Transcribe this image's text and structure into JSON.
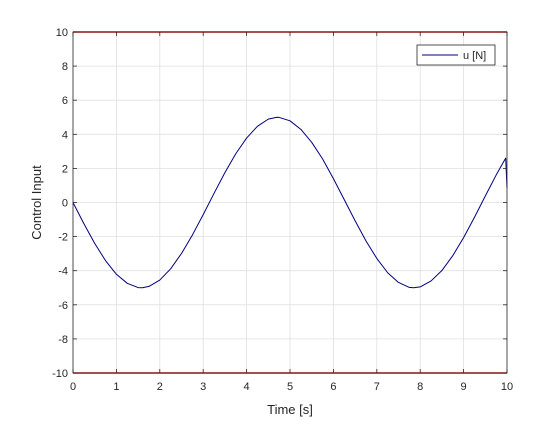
{
  "chart_data": {
    "type": "line",
    "title": "",
    "xlabel": "Time [s]",
    "ylabel": "Control Input",
    "xlim": [
      0,
      10
    ],
    "ylim": [
      -10,
      10
    ],
    "xticks": [
      0,
      1,
      2,
      3,
      4,
      5,
      6,
      7,
      8,
      9,
      10
    ],
    "yticks": [
      -10,
      -8,
      -6,
      -4,
      -2,
      0,
      2,
      4,
      6,
      8,
      10
    ],
    "grid": true,
    "legend_position": "top-right",
    "colors": {
      "series": "#00007f",
      "limits": "#ff0000",
      "grid": "#e0e0e0",
      "axes": "#262626"
    },
    "series": [
      {
        "name": "u [N]",
        "x": [
          0,
          0.25,
          0.5,
          0.75,
          1,
          1.25,
          1.5,
          1.6,
          1.75,
          2,
          2.25,
          2.5,
          2.75,
          3,
          3.25,
          3.5,
          3.75,
          4,
          4.25,
          4.5,
          4.7,
          4.75,
          5,
          5.25,
          5.5,
          5.75,
          6,
          6.25,
          6.5,
          6.75,
          7,
          7.25,
          7.5,
          7.75,
          7.85,
          8,
          8.25,
          8.5,
          8.75,
          9,
          9.25,
          9.5,
          9.75,
          9.97,
          10
        ],
        "y": [
          0,
          -1.24,
          -2.4,
          -3.41,
          -4.21,
          -4.74,
          -4.99,
          -5.0,
          -4.92,
          -4.55,
          -3.89,
          -2.99,
          -1.91,
          -0.71,
          0.54,
          1.75,
          2.86,
          3.78,
          4.47,
          4.89,
          5.0,
          4.99,
          4.79,
          4.29,
          3.53,
          2.56,
          1.4,
          0.17,
          -1.07,
          -2.25,
          -3.28,
          -4.12,
          -4.69,
          -4.98,
          -5.0,
          -4.95,
          -4.6,
          -3.99,
          -3.12,
          -2.06,
          -0.87,
          0.38,
          1.61,
          2.6,
          0.85
        ]
      }
    ],
    "limits": [
      {
        "y": 10
      },
      {
        "y": -10
      }
    ]
  }
}
